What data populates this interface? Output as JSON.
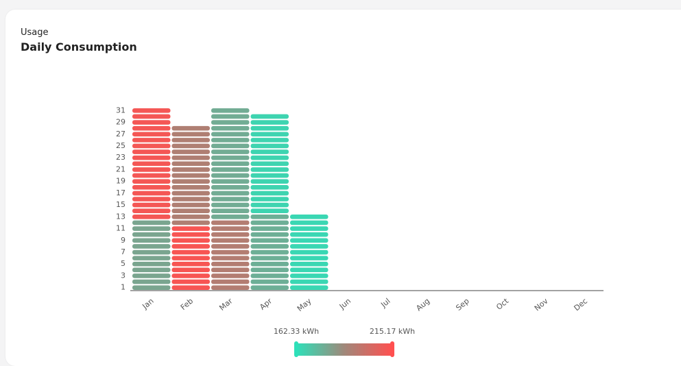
{
  "chart_data": {
    "type": "heatmap",
    "subtitle": "Usage",
    "title": "Daily Consumption",
    "categories": [
      "Jan",
      "Feb",
      "Mar",
      "Apr",
      "May",
      "Jun",
      "Jul",
      "Aug",
      "Sep",
      "Oct",
      "Nov",
      "Dec"
    ],
    "ylim": [
      0.5,
      31.5
    ],
    "yticks": [
      1,
      3,
      5,
      7,
      9,
      11,
      13,
      15,
      17,
      19,
      21,
      23,
      25,
      27,
      29,
      31
    ],
    "values": [
      [
        180,
        180,
        180,
        180,
        180,
        180,
        180,
        180,
        180,
        180,
        180,
        180,
        212,
        212,
        212,
        212,
        212,
        212,
        212,
        212,
        212,
        212,
        212,
        212,
        212,
        212,
        212,
        212,
        212,
        212,
        212
      ],
      [
        213,
        213,
        213,
        213,
        213,
        213,
        213,
        213,
        213,
        213,
        213,
        193,
        193,
        193,
        193,
        193,
        193,
        193,
        193,
        193,
        193,
        193,
        193,
        193,
        193,
        193,
        193,
        193
      ],
      [
        194,
        194,
        194,
        194,
        194,
        194,
        194,
        194,
        194,
        194,
        194,
        194,
        178,
        178,
        178,
        178,
        178,
        178,
        178,
        178,
        178,
        178,
        178,
        178,
        178,
        178,
        178,
        178,
        178,
        178,
        178
      ],
      [
        177,
        177,
        177,
        177,
        177,
        177,
        177,
        177,
        177,
        177,
        177,
        177,
        177,
        166,
        166,
        166,
        166,
        166,
        166,
        166,
        166,
        166,
        166,
        166,
        166,
        166,
        166,
        166,
        166,
        166
      ],
      [
        165,
        165,
        165,
        165,
        165,
        165,
        165,
        165,
        165,
        165,
        165,
        165,
        165
      ],
      [],
      [],
      [],
      [],
      [],
      [],
      []
    ],
    "colorbar": {
      "min": 162.33,
      "max": 215.17,
      "min_label": "162.33 kWh",
      "max_label": "215.17 kWh",
      "colors": [
        "#2ee0b9",
        "#a0887a",
        "#ff5050"
      ]
    }
  }
}
